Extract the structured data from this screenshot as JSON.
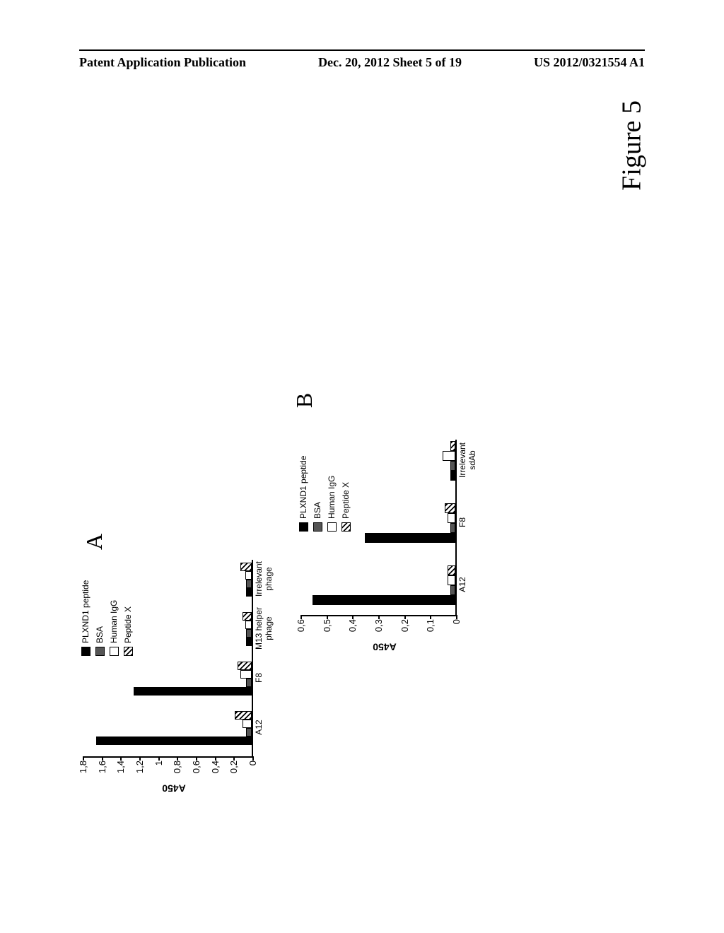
{
  "header": {
    "left": "Patent Application Publication",
    "center": "Dec. 20, 2012  Sheet 5 of 19",
    "right": "US 2012/0321554 A1"
  },
  "figure_label": "Figure 5",
  "panelA": {
    "letter": "A",
    "ylabel": "A450",
    "ymax": 1.8,
    "yticks": [
      0,
      0.2,
      0.4,
      0.6,
      0.8,
      1,
      1.2,
      1.4,
      1.6,
      1.8
    ],
    "ytick_labels": [
      "0",
      "0,2",
      "0,4",
      "0,6",
      "0,8",
      "1",
      "1,2",
      "1,4",
      "1,6",
      "1,8"
    ],
    "categories": [
      "A12",
      "F8",
      "M13 helper\nphage",
      "Irrelevant\nphage"
    ],
    "series": [
      {
        "name": "PLXND1 peptide",
        "pattern": "solid",
        "values": [
          1.65,
          1.25,
          0.06,
          0.06
        ]
      },
      {
        "name": "BSA",
        "pattern": "check",
        "values": [
          0.06,
          0.06,
          0.06,
          0.06
        ]
      },
      {
        "name": "Human IgG",
        "pattern": "white",
        "values": [
          0.1,
          0.12,
          0.07,
          0.07
        ]
      },
      {
        "name": "Peptide X",
        "pattern": "hatch",
        "values": [
          0.18,
          0.15,
          0.1,
          0.12
        ]
      }
    ],
    "legend": [
      {
        "label": "PLXND1 peptide",
        "pattern": "solid"
      },
      {
        "label": "BSA",
        "pattern": "check"
      },
      {
        "label": "Human IgG",
        "pattern": "white"
      },
      {
        "label": "Peptide X",
        "pattern": "hatch"
      }
    ],
    "bar_color_solid": "#000000",
    "bar_color_check": "#555555",
    "bar_border": "#000000",
    "grid_color": "#000000",
    "bg": "#ffffff"
  },
  "panelB": {
    "letter": "B",
    "ylabel": "A450",
    "ymax": 0.6,
    "yticks": [
      0,
      0.1,
      0.2,
      0.3,
      0.4,
      0.5,
      0.6
    ],
    "ytick_labels": [
      "0",
      "0,1",
      "0,2",
      "0,3",
      "0,4",
      "0,5",
      "0,6"
    ],
    "categories": [
      "A12",
      "F8",
      "Irrelevant\nsdAb"
    ],
    "series": [
      {
        "name": "PLXND1 peptide",
        "pattern": "solid",
        "values": [
          0.55,
          0.35,
          0.02
        ]
      },
      {
        "name": "BSA",
        "pattern": "check",
        "values": [
          0.02,
          0.02,
          0.02
        ]
      },
      {
        "name": "Human IgG",
        "pattern": "white",
        "values": [
          0.03,
          0.03,
          0.05
        ]
      },
      {
        "name": "Peptide X",
        "pattern": "hatch",
        "values": [
          0.03,
          0.04,
          0.02
        ]
      }
    ],
    "legend": [
      {
        "label": "PLXND1 peptide",
        "pattern": "solid"
      },
      {
        "label": "BSA",
        "pattern": "check"
      },
      {
        "label": "Human IgG",
        "pattern": "white"
      },
      {
        "label": "Peptide X",
        "pattern": "hatch"
      }
    ]
  }
}
